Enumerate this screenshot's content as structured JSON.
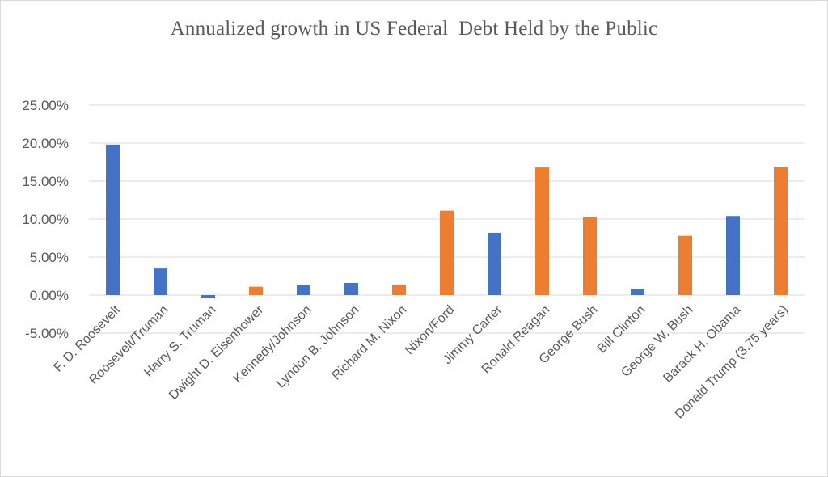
{
  "chart_data": {
    "type": "bar",
    "title": "Annualized growth in US Federal  Debt Held by the Public",
    "xlabel": "",
    "ylabel": "",
    "ylim": [
      -0.05,
      0.25
    ],
    "y_ticks": [
      "25.00%",
      "20.00%",
      "15.00%",
      "10.00%",
      "5.00%",
      "0.00%",
      "-5.00%"
    ],
    "y_tick_values": [
      0.25,
      0.2,
      0.15,
      0.1,
      0.05,
      0.0,
      -0.05
    ],
    "grid": true,
    "legend": "none",
    "categories": [
      "F. D. Roosevelt",
      "Roosevelt/Truman",
      "Harry S. Truman",
      "Dwight D. Eisenhower",
      "Kennedy/Johnson",
      "Lyndon B. Johnson",
      "Richard M. Nixon",
      "Nixon/Ford",
      "Jimmy Carter",
      "Ronald Reagan",
      "George Bush",
      "Bill Clinton",
      "George W. Bush",
      "Barack H. Obama",
      "Donald Trump (3.75 years)"
    ],
    "values": [
      0.198,
      0.035,
      -0.004,
      0.011,
      0.013,
      0.016,
      0.014,
      0.111,
      0.082,
      0.168,
      0.103,
      0.008,
      0.078,
      0.104,
      0.169
    ],
    "bar_colors": [
      "#4472c4",
      "#4472c4",
      "#4472c4",
      "#ed7d31",
      "#4472c4",
      "#4472c4",
      "#ed7d31",
      "#ed7d31",
      "#4472c4",
      "#ed7d31",
      "#ed7d31",
      "#4472c4",
      "#ed7d31",
      "#4472c4",
      "#ed7d31"
    ]
  },
  "colors": {
    "blue": "#4472c4",
    "orange": "#ed7d31",
    "grid": "#d9d9d9",
    "text": "#595959"
  }
}
